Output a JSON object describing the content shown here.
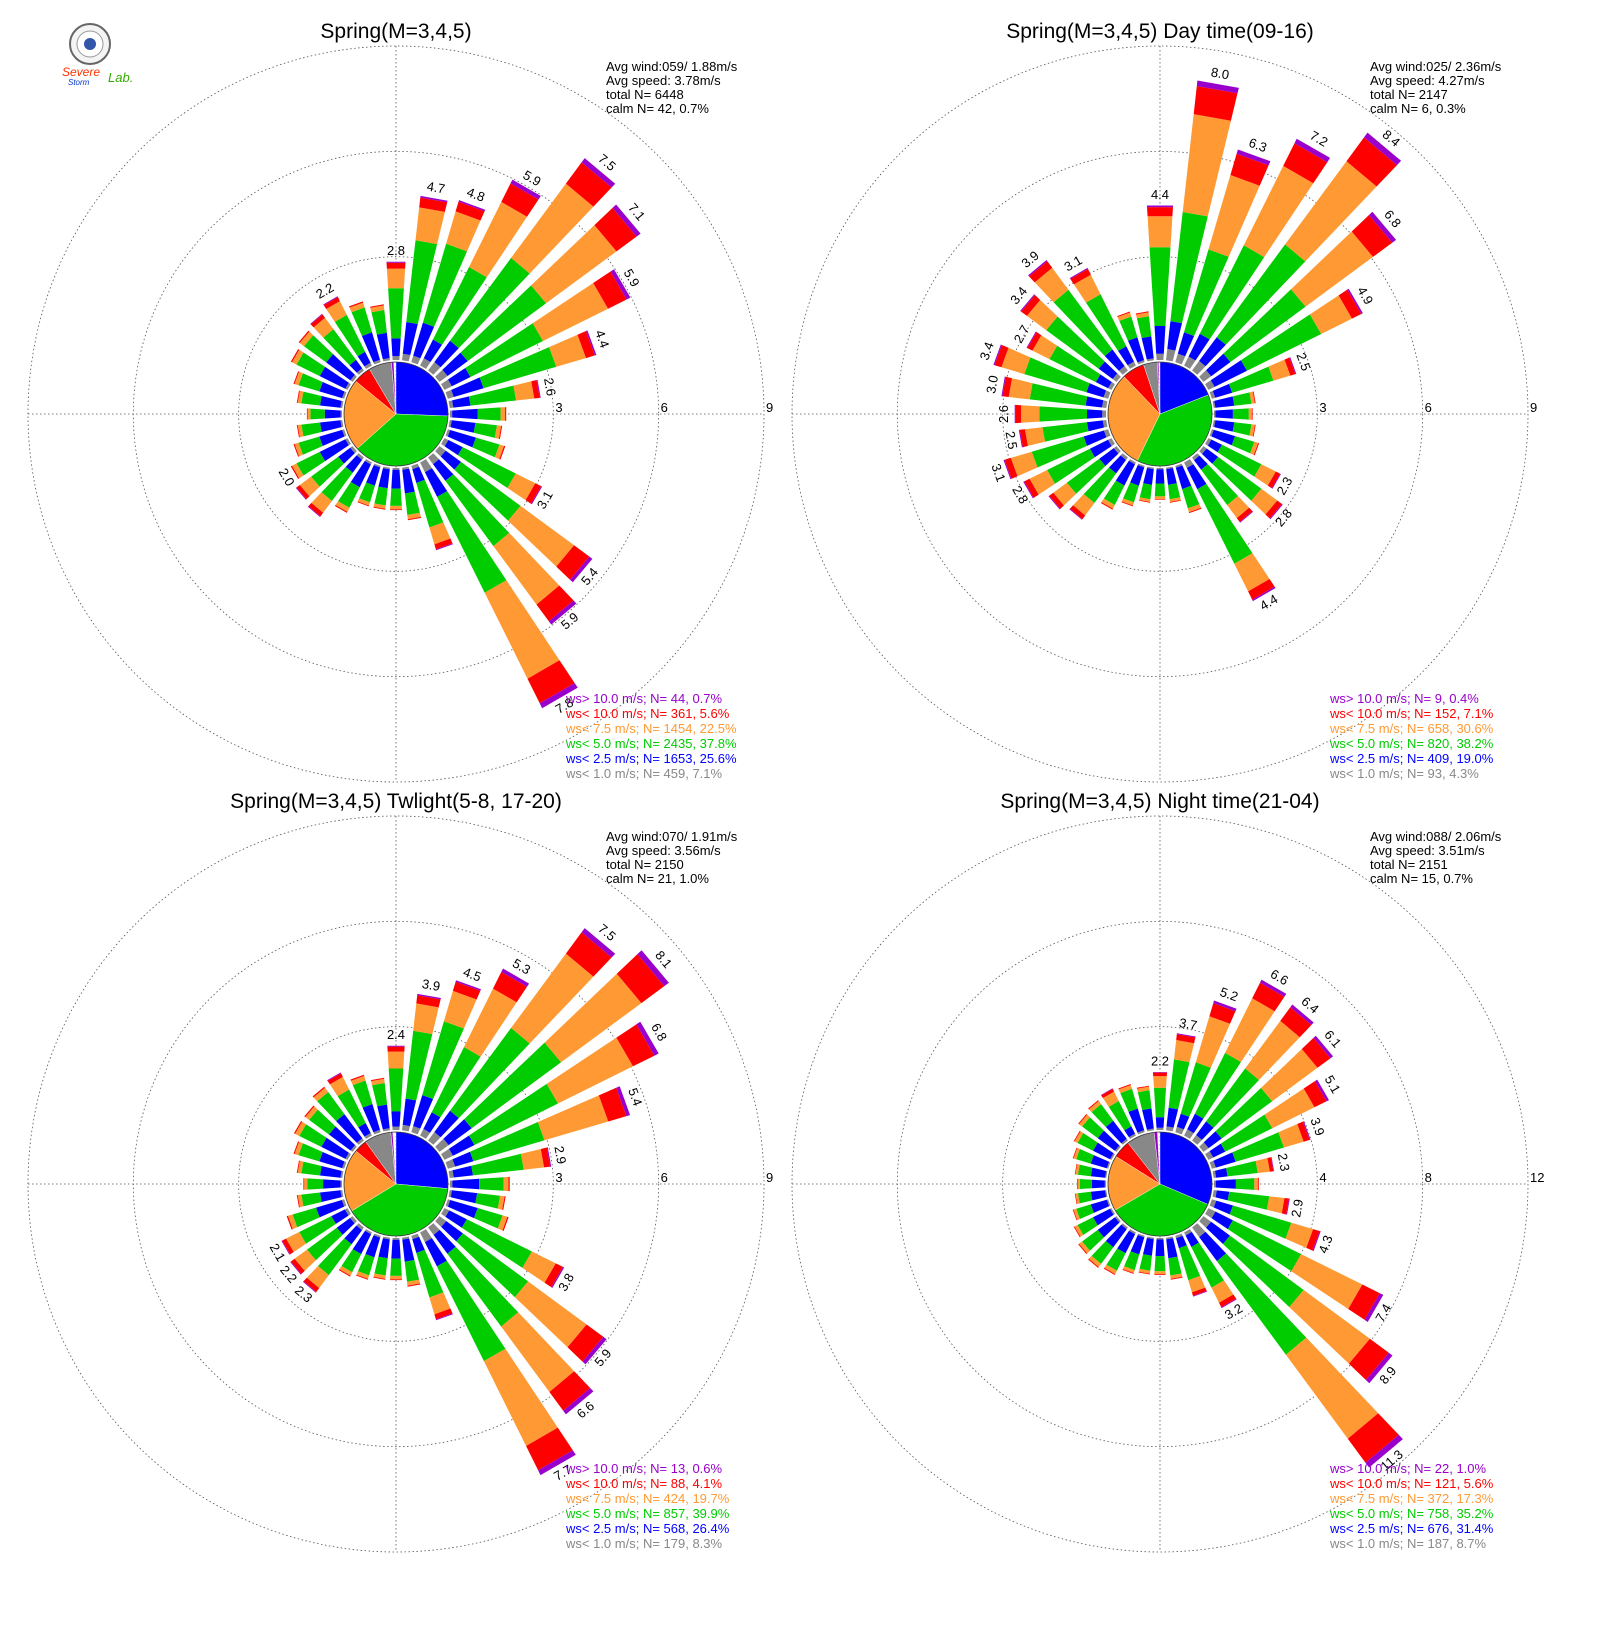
{
  "logo": {
    "text_main": "Severe",
    "text_sub": "Storm",
    "text_lab": "Lab.",
    "icon": "university-seal-icon"
  },
  "colors": {
    "gt10": "#9900cc",
    "lt10": "#ff0000",
    "lt75": "#ff9933",
    "lt5": "#00cc00",
    "lt25": "#0000ff",
    "lt1": "#888888",
    "ring": "#555555"
  },
  "panels": [
    {
      "title": "Spring(M=3,4,5)",
      "stats": {
        "avg_wind": "Avg wind:059/ 1.88m/s",
        "avg_speed": "Avg speed: 3.78m/s",
        "total": "total N=       6448",
        "calm": "calm N=     42,   0.7%"
      },
      "legend": [
        "ws> 10.0 m/s; N=     44,  0.7%",
        "ws< 10.0 m/s; N=    361,  5.6%",
        "ws<  7.5 m/s; N=  1454, 22.5%",
        "ws<  5.0 m/s; N=  2435, 37.8%",
        "ws<  2.5 m/s; N=  1653, 25.6%",
        "ws<  1.0 m/s; N=    459,  7.1%"
      ],
      "ring_labels": [
        "3",
        "6",
        "9"
      ],
      "chart_data": {
        "type": "wind-rose",
        "rmax": 9,
        "rings": [
          3,
          6,
          9
        ],
        "speed_bins": [
          ">10.0",
          "<10.0",
          "<7.5",
          "<5.0",
          "<2.5",
          "<1.0"
        ],
        "bin_counts": [
          44,
          361,
          1454,
          2435,
          1653,
          459
        ],
        "bin_percent": [
          0.7,
          5.6,
          22.5,
          37.8,
          25.6,
          7.1
        ],
        "directions_deg": [
          0,
          10,
          20,
          30,
          40,
          50,
          60,
          70,
          80,
          90,
          100,
          110,
          120,
          130,
          140,
          150,
          160,
          170,
          180,
          190,
          200,
          210,
          220,
          230,
          240,
          250,
          260,
          270,
          280,
          290,
          300,
          310,
          320,
          330,
          340,
          350
        ],
        "totals": [
          2.8,
          4.7,
          4.8,
          5.9,
          7.5,
          7.1,
          5.9,
          4.4,
          2.6,
          1.6,
          1.5,
          1.7,
          3.1,
          5.4,
          5.9,
          7.8,
          2.5,
          1.5,
          1.2,
          1.2,
          1.2,
          1.6,
          2.1,
          2.0,
          1.8,
          1.5,
          1.3,
          1.0,
          1.3,
          1.5,
          1.8,
          1.9,
          2.0,
          2.2,
          1.8,
          1.6
        ],
        "labels": {
          "0": "2.8",
          "10": "4.7",
          "20": "4.8",
          "30": "5.9",
          "40": "7.5",
          "50": "7.1",
          "60": "5.9",
          "70": "4.4",
          "80": "2.6",
          "120": "3.1",
          "130": "5.4",
          "140": "5.9",
          "150": "7.8",
          "240": "2.0",
          "330": "2.2"
        }
      }
    },
    {
      "title": "Spring(M=3,4,5) Day time(09-16)",
      "stats": {
        "avg_wind": "Avg wind:025/ 2.36m/s",
        "avg_speed": "Avg speed: 4.27m/s",
        "total": "total N=        2147",
        "calm": "calm N=       6,   0.3%"
      },
      "legend": [
        "ws> 10.0 m/s; N=      9,  0.4%",
        "ws< 10.0 m/s; N=    152,  7.1%",
        "ws<  7.5 m/s; N=    658, 30.6%",
        "ws<  5.0 m/s; N=    820, 38.2%",
        "ws<  2.5 m/s; N=    409, 19.0%",
        "ws<  1.0 m/s; N=      93,  4.3%"
      ],
      "ring_labels": [
        "3",
        "6",
        "9"
      ],
      "chart_data": {
        "type": "wind-rose",
        "rmax": 9,
        "rings": [
          3,
          6,
          9
        ],
        "speed_bins": [
          ">10.0",
          "<10.0",
          "<7.5",
          "<5.0",
          "<2.5",
          "<1.0"
        ],
        "bin_counts": [
          9,
          152,
          658,
          820,
          409,
          93
        ],
        "bin_percent": [
          0.4,
          7.1,
          30.6,
          38.2,
          19.0,
          4.3
        ],
        "directions_deg": [
          0,
          10,
          20,
          30,
          40,
          50,
          60,
          70,
          80,
          90,
          100,
          110,
          120,
          130,
          140,
          150,
          160,
          170,
          180,
          190,
          200,
          210,
          220,
          230,
          240,
          250,
          260,
          270,
          280,
          290,
          300,
          310,
          320,
          330,
          340,
          350
        ],
        "totals": [
          4.4,
          8.0,
          6.3,
          7.2,
          8.4,
          6.8,
          4.9,
          2.5,
          1.2,
          1.1,
          1.2,
          1.4,
          2.3,
          2.8,
          2.3,
          4.4,
          1.4,
          1.0,
          0.9,
          1.0,
          1.2,
          1.5,
          2.2,
          2.4,
          2.8,
          3.1,
          2.5,
          2.6,
          3.0,
          3.4,
          2.7,
          3.4,
          3.9,
          3.1,
          1.5,
          1.4
        ],
        "labels": {
          "0": "4.4",
          "10": "8.0",
          "20": "6.3",
          "30": "7.2",
          "40": "8.4",
          "50": "6.8",
          "60": "4.9",
          "70": "2.5",
          "120": "2.3",
          "130": "2.8",
          "150": "4.4",
          "240": "2.8",
          "250": "3.1",
          "260": "2.5",
          "270": "2.6",
          "280": "3.0",
          "290": "3.4",
          "300": "2.7",
          "310": "3.4",
          "320": "3.9",
          "330": "3.1"
        }
      }
    },
    {
      "title": "Spring(M=3,4,5) Twlight(5-8, 17-20)",
      "stats": {
        "avg_wind": "Avg wind:070/ 1.91m/s",
        "avg_speed": "Avg speed: 3.56m/s",
        "total": "total N=       2150",
        "calm": "calm N=     21,   1.0%"
      },
      "legend": [
        "ws> 10.0 m/s; N=     13,  0.6%",
        "ws< 10.0 m/s; N=      88,  4.1%",
        "ws<  7.5 m/s; N=    424, 19.7%",
        "ws<  5.0 m/s; N=    857, 39.9%",
        "ws<  2.5 m/s; N=    568, 26.4%",
        "ws<  1.0 m/s; N=    179,  8.3%"
      ],
      "ring_labels": [
        "3",
        "6",
        "9"
      ],
      "chart_data": {
        "type": "wind-rose",
        "rmax": 9,
        "rings": [
          3,
          6,
          9
        ],
        "speed_bins": [
          ">10.0",
          "<10.0",
          "<7.5",
          "<5.0",
          "<2.5",
          "<1.0"
        ],
        "bin_counts": [
          13,
          88,
          424,
          857,
          568,
          179
        ],
        "bin_percent": [
          0.6,
          4.1,
          19.7,
          39.9,
          26.4,
          8.3
        ],
        "directions_deg": [
          0,
          10,
          20,
          30,
          40,
          50,
          60,
          70,
          80,
          90,
          100,
          110,
          120,
          130,
          140,
          150,
          160,
          170,
          180,
          190,
          200,
          210,
          220,
          230,
          240,
          250,
          260,
          270,
          280,
          290,
          300,
          310,
          320,
          330,
          340,
          350
        ],
        "totals": [
          2.4,
          3.9,
          4.5,
          5.3,
          7.5,
          8.1,
          6.8,
          5.4,
          2.9,
          1.7,
          1.6,
          1.8,
          3.8,
          5.9,
          6.6,
          7.7,
          2.5,
          1.4,
          1.2,
          1.2,
          1.3,
          1.4,
          2.3,
          2.2,
          2.1,
          1.7,
          1.3,
          1.1,
          1.3,
          1.5,
          1.7,
          1.7,
          1.9,
          2.0,
          1.7,
          1.5
        ],
        "labels": {
          "0": "2.4",
          "10": "3.9",
          "20": "4.5",
          "30": "5.3",
          "40": "7.5",
          "50": "8.1",
          "60": "6.8",
          "70": "5.4",
          "80": "2.9",
          "120": "3.8",
          "130": "5.9",
          "140": "6.6",
          "150": "7.7",
          "220": "2.3",
          "230": "2.2",
          "240": "2.1"
        }
      }
    },
    {
      "title": "Spring(M=3,4,5) Night time(21-04)",
      "stats": {
        "avg_wind": "Avg wind:088/ 2.06m/s",
        "avg_speed": "Avg speed: 3.51m/s",
        "total": "total N=        2151",
        "calm": "calm N=     15,   0.7%"
      },
      "legend": [
        "ws> 10.0 m/s; N=     22,  1.0%",
        "ws< 10.0 m/s; N=    121,  5.6%",
        "ws<  7.5 m/s; N=    372, 17.3%",
        "ws<  5.0 m/s; N=    758, 35.2%",
        "ws<  2.5 m/s; N=    676, 31.4%",
        "ws<  1.0 m/s; N=    187,  8.7%"
      ],
      "ring_labels": [
        "4",
        "8",
        "12"
      ],
      "chart_data": {
        "type": "wind-rose",
        "rmax": 12,
        "rings": [
          4,
          8,
          12
        ],
        "speed_bins": [
          ">10.0",
          "<10.0",
          "<7.5",
          "<5.0",
          "<2.5",
          "<1.0"
        ],
        "bin_counts": [
          22,
          121,
          372,
          758,
          676,
          187
        ],
        "bin_percent": [
          1.0,
          5.6,
          17.3,
          35.2,
          31.4,
          8.7
        ],
        "directions_deg": [
          0,
          10,
          20,
          30,
          40,
          50,
          60,
          70,
          80,
          90,
          100,
          110,
          120,
          130,
          140,
          150,
          160,
          170,
          180,
          190,
          200,
          210,
          220,
          230,
          240,
          250,
          260,
          270,
          280,
          290,
          300,
          310,
          320,
          330,
          340,
          350
        ],
        "totals": [
          2.2,
          3.7,
          5.2,
          6.6,
          6.4,
          6.1,
          5.1,
          3.9,
          2.3,
          1.7,
          2.9,
          4.3,
          7.4,
          8.9,
          11.3,
          3.2,
          2.4,
          1.6,
          1.4,
          1.4,
          1.5,
          1.8,
          1.9,
          1.8,
          1.6,
          1.4,
          1.2,
          1.1,
          1.2,
          1.4,
          1.6,
          1.8,
          1.9,
          2.0,
          1.9,
          1.7
        ],
        "labels": {
          "0": "2.2",
          "10": "3.7",
          "20": "5.2",
          "30": "6.6",
          "40": "6.4",
          "50": "6.1",
          "60": "5.1",
          "70": "3.9",
          "80": "2.3",
          "100": "2.9",
          "110": "4.3",
          "120": "7.4",
          "130": "8.9",
          "140": "11.3",
          "150": "3.2"
        }
      }
    }
  ]
}
